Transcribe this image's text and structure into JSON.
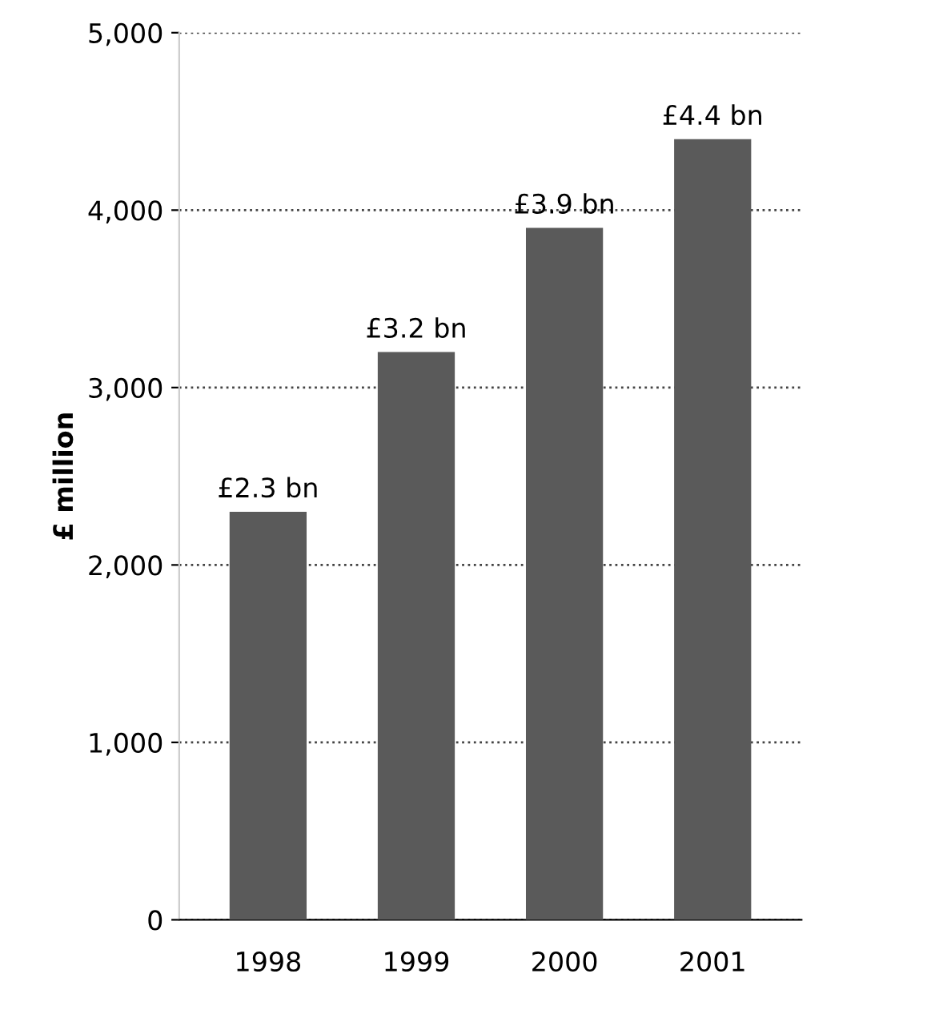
{
  "chart_data": {
    "type": "bar",
    "ylabel": "£ million",
    "categories": [
      "1998",
      "1999",
      "2000",
      "2001"
    ],
    "values": [
      2300,
      3200,
      3900,
      4400
    ],
    "annotations": [
      {
        "text": "£2.3 bn",
        "x": "1998",
        "y": 2300
      },
      {
        "text": "£3.2 bn",
        "x": "1999",
        "y": 3200
      },
      {
        "text": "£3.9 bn",
        "x": "2000",
        "y": 3900
      },
      {
        "text": "£4.4 bn",
        "x": "2001",
        "y": 4400
      }
    ],
    "color": "#5a5a5a",
    "ylim": [
      0,
      5000
    ],
    "yticks": [
      {
        "value": 0,
        "label": "0"
      },
      {
        "value": 1000,
        "label": "1,000"
      },
      {
        "value": 2000,
        "label": "2,000"
      },
      {
        "value": 3000,
        "label": "3,000"
      },
      {
        "value": 4000,
        "label": "4,000"
      },
      {
        "value": 5000,
        "label": "5,000"
      }
    ],
    "grid": "y",
    "line_style": "dotted"
  }
}
